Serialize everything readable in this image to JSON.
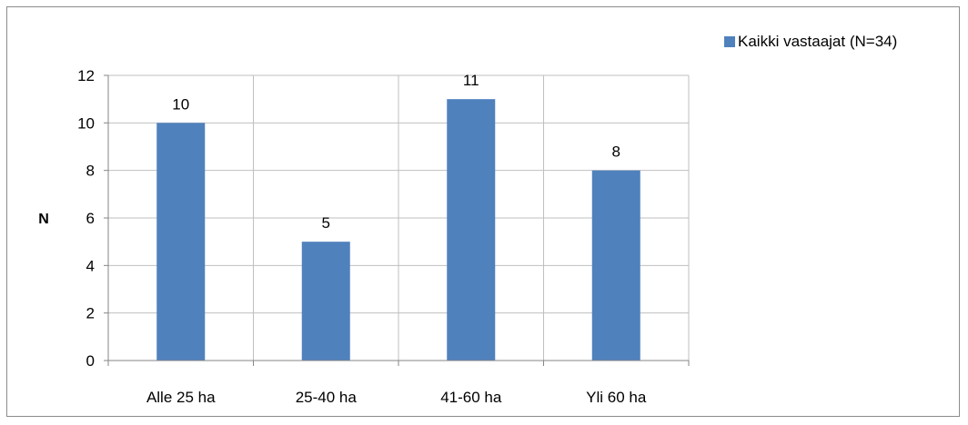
{
  "chart_data": {
    "type": "bar",
    "categories": [
      "Alle 25 ha",
      "25-40 ha",
      "41-60 ha",
      "Yli 60 ha"
    ],
    "series": [
      {
        "name": "Kaikki vastaajat (N=34)",
        "values": [
          10,
          5,
          11,
          8
        ],
        "color": "#4f81bd"
      }
    ],
    "data_labels": [
      "10",
      "5",
      "11",
      "8"
    ],
    "ylabel": "N",
    "xlabel": "",
    "ylim": [
      0,
      12
    ],
    "yticks": [
      0,
      2,
      4,
      6,
      8,
      10,
      12
    ],
    "grid": true,
    "legend_position": "top-right"
  }
}
